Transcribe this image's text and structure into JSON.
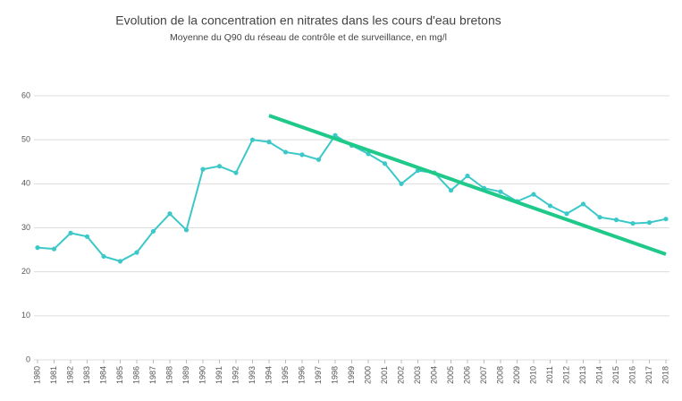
{
  "chart_data": {
    "type": "line",
    "title": "Evolution de la concentration en nitrates dans les cours d'eau bretons",
    "subtitle": "Moyenne du Q90 du réseau de contrôle et de surveillance, en mg/l",
    "x": [
      1980,
      1981,
      1982,
      1983,
      1984,
      1985,
      1986,
      1987,
      1988,
      1989,
      1990,
      1991,
      1992,
      1993,
      1994,
      1995,
      1996,
      1997,
      1998,
      1999,
      2000,
      2001,
      2002,
      2003,
      2004,
      2005,
      2006,
      2007,
      2008,
      2009,
      2010,
      2011,
      2012,
      2013,
      2014,
      2015,
      2016,
      2017,
      2018
    ],
    "series": [
      {
        "color": "#3cc8c8",
        "values": [
          25.5,
          25.2,
          28.8,
          28.0,
          23.5,
          22.4,
          24.4,
          29.2,
          33.2,
          29.5,
          43.3,
          44.0,
          42.5,
          50.0,
          49.5,
          47.2,
          46.6,
          45.5,
          51.0,
          48.7,
          46.8,
          44.6,
          40.0,
          43.0,
          42.5,
          38.5,
          41.8,
          39.0,
          38.2,
          36.0,
          37.6,
          35.0,
          33.2,
          35.4,
          32.4,
          31.8,
          31.0,
          31.2,
          32.0
        ]
      },
      {
        "color": "#1ec98a",
        "x": [
          1994,
          2018
        ],
        "values": [
          55.5,
          24
        ]
      }
    ],
    "xlim": [
      1980,
      2018
    ],
    "xticks": [
      1980,
      1981,
      1982,
      1983,
      1984,
      1985,
      1986,
      1987,
      1988,
      1989,
      1990,
      1991,
      1992,
      1993,
      1994,
      1995,
      1996,
      1997,
      1998,
      1999,
      2000,
      2001,
      2002,
      2003,
      2004,
      2005,
      2006,
      2007,
      2008,
      2009,
      2010,
      2011,
      2012,
      2013,
      2014,
      2015,
      2016,
      2017,
      2018
    ],
    "ylim": [
      0,
      60
    ],
    "yticks": [
      0,
      10,
      20,
      30,
      40,
      50,
      60
    ],
    "grid": true
  }
}
